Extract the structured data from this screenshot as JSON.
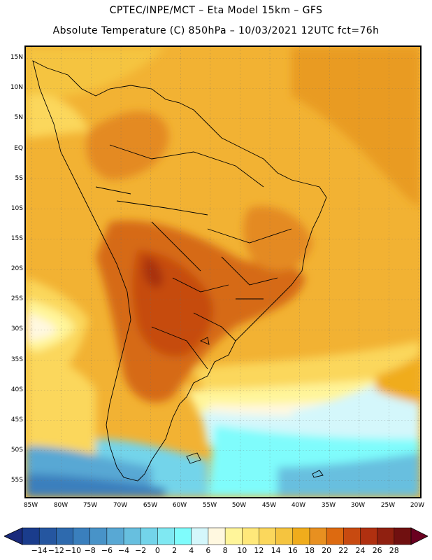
{
  "title": {
    "line1": "CPTEC/INPE/MCT –  Eta Model 15km – GFS",
    "line2": "Absolute Temperature (C) 850hPa – 10/03/2021 12UTC fct=76h"
  },
  "axes": {
    "lat_labels": [
      "15N",
      "10N",
      "5N",
      "EQ",
      "5S",
      "10S",
      "15S",
      "20S",
      "25S",
      "30S",
      "35S",
      "40S",
      "45S",
      "50S",
      "55S"
    ],
    "lon_labels": [
      "85W",
      "80W",
      "75W",
      "70W",
      "65W",
      "60W",
      "55W",
      "50W",
      "45W",
      "40W",
      "35W",
      "30W",
      "25W",
      "20W"
    ]
  },
  "colorbar": {
    "labels": [
      "−14",
      "−12",
      "−10",
      "−8",
      "−6",
      "−4",
      "−2",
      "0",
      "2",
      "4",
      "6",
      "8",
      "10",
      "12",
      "14",
      "16",
      "18",
      "20",
      "22",
      "24",
      "26",
      "28"
    ],
    "colors": [
      "#1a3c8c",
      "#2556a0",
      "#2e6aae",
      "#3a7fbd",
      "#4893c8",
      "#58a8d4",
      "#67bfdf",
      "#73d4ea",
      "#7fe8f2",
      "#7ffcfc",
      "#d4f7fb",
      "#fff8e0",
      "#fff59a",
      "#ffe87a",
      "#fbd75c",
      "#f5c43f",
      "#f0ac1c",
      "#e89020",
      "#dd6a10",
      "#c84a10",
      "#b03010",
      "#902010",
      "#701010"
    ],
    "under_color": "#1a2a7c",
    "over_color": "#6a0020"
  },
  "colors": {
    "map_background": "#f2b233",
    "land_border": "#000000",
    "grid": "#555555"
  }
}
